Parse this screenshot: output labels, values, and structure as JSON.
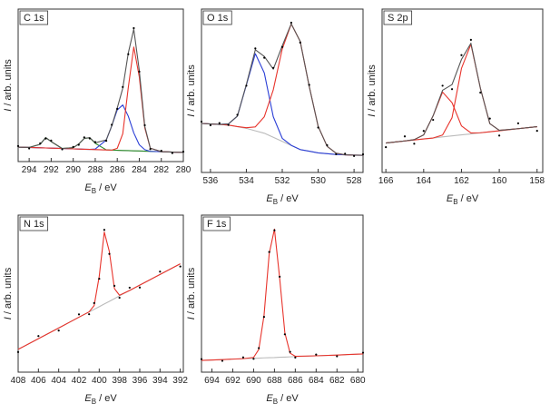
{
  "chart_data": [
    {
      "type": "line",
      "title": "C 1s",
      "xlabel": [
        "E",
        "B",
        " / eV"
      ],
      "ylabel": [
        "I",
        " / arb. units"
      ],
      "xlim": [
        295,
        280
      ],
      "xticks": [
        294,
        292,
        290,
        288,
        286,
        284,
        282,
        280
      ],
      "ylim": [
        0,
        100
      ],
      "x": [
        295,
        294,
        293,
        292.5,
        292,
        291,
        290,
        289.5,
        289,
        288.5,
        288,
        287,
        286.5,
        286,
        285.5,
        285,
        284.5,
        284,
        283.5,
        283,
        282,
        281,
        280
      ],
      "series": [
        {
          "color": "#bbbbbb",
          "style": "line",
          "values": [
            9.5,
            9.27,
            9.03,
            8.92,
            8.8,
            8.57,
            8.33,
            8.22,
            8.1,
            7.98,
            7.87,
            7.63,
            7.52,
            7.4,
            7.28,
            7.17,
            7.05,
            6.93,
            6.82,
            6.7,
            6.47,
            6.23,
            6
          ]
        },
        {
          "color": "#2a8a2a",
          "style": "line",
          "values": [
            9.5,
            9.27,
            11.3,
            15.7,
            13.1,
            8.57,
            9.1,
            11.5,
            15.2,
            15.6,
            12.0,
            7.7,
            7.52,
            7.4,
            7.28,
            7.17,
            7.05,
            6.93,
            6.82,
            6.7,
            6.47,
            6.23,
            6
          ]
        },
        {
          "color": "#2b3fd6",
          "style": "line",
          "values": [
            9.5,
            9.27,
            9.03,
            8.92,
            8.8,
            8.57,
            8.33,
            8.22,
            8.1,
            7.98,
            8.2,
            14.1,
            23.4,
            33.9,
            37.1,
            29.8,
            18.8,
            11.0,
            7.8,
            6.7,
            6.47,
            6.23,
            6
          ]
        },
        {
          "color": "#e8342c",
          "style": "line",
          "values": [
            9.5,
            9.27,
            9.03,
            8.92,
            8.8,
            8.57,
            8.33,
            8.22,
            8.1,
            7.98,
            7.87,
            7.63,
            7.52,
            8.7,
            18.3,
            48.5,
            75.1,
            55.6,
            22.1,
            8.8,
            6.5,
            6.2,
            6
          ]
        },
        {
          "color": "#555555",
          "style": "line",
          "values": [
            9.5,
            9.27,
            11.3,
            15.7,
            13.1,
            8.57,
            9.1,
            11.5,
            15.2,
            15.7,
            12.3,
            14.2,
            23.4,
            35.2,
            48.1,
            71.1,
            86.8,
            59.7,
            23.1,
            8.8,
            6.5,
            6.2,
            6
          ]
        },
        {
          "color": "#000000",
          "style": "points",
          "values": [
            10.2,
            8.6,
            11.9,
            15.1,
            13.8,
            8.0,
            9.6,
            11.0,
            15.9,
            15.2,
            12.8,
            13.6,
            24.1,
            34.6,
            48.9,
            70.4,
            87.5,
            59.0,
            23.8,
            8.2,
            7.1,
            5.6,
            6.5
          ]
        }
      ]
    },
    {
      "type": "line",
      "title": "O 1s",
      "xlabel": [
        "E",
        "B",
        " / eV"
      ],
      "ylabel": [
        "I",
        " / arb. units"
      ],
      "xlim": [
        536.5,
        527.5
      ],
      "xticks": [
        536,
        534,
        532,
        530,
        528
      ],
      "ylim": [
        0,
        100
      ],
      "x": [
        536.5,
        536,
        535.5,
        535,
        534.5,
        534,
        533.5,
        533,
        532.5,
        532,
        531.5,
        531,
        530.5,
        530,
        529.5,
        529,
        528.5,
        528,
        527.5
      ],
      "series": [
        {
          "color": "#bbbbbb",
          "style": "line",
          "values": [
            30,
            29.7,
            29.4,
            29,
            28,
            27,
            25.5,
            24,
            21.5,
            19,
            16.5,
            14,
            13,
            12,
            11.5,
            11,
            10.8,
            10.6,
            10.5
          ]
        },
        {
          "color": "#2b3fd6",
          "style": "line",
          "values": [
            30,
            29.7,
            29.4,
            29.7,
            34.5,
            53.5,
            72.7,
            60.9,
            34.1,
            20.9,
            16.6,
            14,
            13,
            12,
            11.5,
            11,
            10.8,
            10.6,
            10.5
          ]
        },
        {
          "color": "#e8342c",
          "style": "line",
          "values": [
            30,
            29.7,
            29.4,
            29,
            28.1,
            27.4,
            27.9,
            34.1,
            50.6,
            75.6,
            90.9,
            80.2,
            52.8,
            28.2,
            16,
            11.8,
            10.8,
            10.6,
            10.5
          ]
        },
        {
          "color": "#555555",
          "style": "line",
          "values": [
            30,
            29.7,
            29.4,
            29.7,
            34.5,
            53.9,
            75.1,
            71,
            63.2,
            77.5,
            91,
            80.2,
            52.8,
            28.2,
            16,
            11.8,
            10.8,
            10.6,
            10.5
          ]
        },
        {
          "color": "#000000",
          "style": "points",
          "values": [
            31.1,
            28.9,
            30.2,
            29.1,
            35.3,
            53.1,
            75.9,
            70.2,
            64.0,
            76.8,
            91.7,
            79.5,
            53.6,
            27.5,
            16.7,
            11.2,
            11.5,
            10.1,
            11.1
          ]
        }
      ]
    },
    {
      "type": "line",
      "title": "S 2p",
      "xlabel": [
        "E",
        "B",
        " / eV"
      ],
      "ylabel": [
        "I",
        " / arb. units"
      ],
      "xlim": [
        166.2,
        157.7
      ],
      "xticks": [
        166,
        164,
        162,
        160,
        158
      ],
      "ylim": [
        0,
        100
      ],
      "x": [
        166,
        165,
        164.5,
        164,
        163.5,
        163,
        162.5,
        162,
        161.5,
        161,
        160.5,
        160,
        159,
        158
      ],
      "series": [
        {
          "color": "#bbbbbb",
          "style": "line",
          "values": [
            18,
            19.25,
            19.9,
            20.5,
            21.1,
            21.75,
            22.4,
            23,
            23.6,
            24.25,
            24.9,
            25.5,
            26.75,
            28
          ]
        },
        {
          "color": "#e8342c",
          "style": "line",
          "values": [
            18,
            19.25,
            19.9,
            20.5,
            21.1,
            22.9,
            33.5,
            63.7,
            78.5,
            51.6,
            29.9,
            25.8,
            26.8,
            28
          ]
        },
        {
          "color": "#e8342c",
          "style": "line",
          "values": [
            18,
            19.3,
            20.1,
            23,
            34.7,
            49.2,
            42.7,
            28.5,
            24.2,
            24.3,
            24.9,
            25.5,
            26.8,
            28
          ]
        },
        {
          "color": "#555555",
          "style": "line",
          "values": [
            18,
            19.3,
            20.1,
            23,
            34.7,
            50.3,
            53.8,
            69.2,
            79.1,
            51.6,
            29.9,
            25.8,
            26.8,
            28
          ]
        },
        {
          "color": "#000000",
          "style": "points",
          "values": [
            15.5,
            22.1,
            17.6,
            25.4,
            32.2,
            53.1,
            51.0,
            71.8,
            81.2,
            48.9,
            33.0,
            22.6,
            30.1,
            25.5
          ]
        }
      ]
    },
    {
      "type": "line",
      "title": "N 1s",
      "xlabel": [
        "E",
        "B",
        " / eV"
      ],
      "ylabel": [
        "I",
        " / arb. units"
      ],
      "xlim": [
        408,
        391.7
      ],
      "xticks": [
        408,
        406,
        404,
        402,
        400,
        398,
        396,
        394,
        392
      ],
      "ylim": [
        0,
        100
      ],
      "x": [
        408,
        406,
        404,
        402,
        401,
        400.5,
        400,
        399.5,
        399,
        398.5,
        398,
        397,
        396,
        394,
        392
      ],
      "series": [
        {
          "color": "#bbbbbb",
          "style": "line",
          "values": [
            14.5,
            21.3,
            28.1,
            35,
            38.3,
            40,
            41.7,
            43.4,
            45.1,
            46.8,
            48.6,
            52,
            55.4,
            62.2,
            69
          ]
        },
        {
          "color": "#e8342c",
          "style": "line",
          "values": [
            14.5,
            21.3,
            28.1,
            35,
            38.4,
            42.4,
            61,
            89.2,
            76.8,
            53.2,
            49,
            52,
            55.4,
            62.2,
            69
          ]
        },
        {
          "color": "#000000",
          "style": "points",
          "values": [
            12.8,
            23.0,
            26.5,
            36.8,
            36.9,
            44.0,
            59.5,
            90.6,
            75.3,
            55.0,
            47.4,
            53.8,
            53.9,
            64.0,
            67.3
          ]
        }
      ]
    },
    {
      "type": "line",
      "title": "F 1s",
      "xlabel": [
        "E",
        "B",
        " / eV"
      ],
      "ylabel": [
        "I",
        " / arb. units"
      ],
      "xlim": [
        695,
        679.5
      ],
      "xticks": [
        694,
        692,
        690,
        688,
        686,
        684,
        682,
        680
      ],
      "ylim": [
        0,
        100
      ],
      "x": [
        695,
        693,
        691,
        690,
        689.5,
        689,
        688.5,
        688,
        687.5,
        687,
        686.5,
        686,
        684,
        682,
        679.5
      ],
      "series": [
        {
          "color": "#bbbbbb",
          "style": "line",
          "values": [
            7.5,
            8.0,
            8.6,
            8.8,
            8.95,
            9.1,
            9.2,
            9.3,
            9.5,
            9.6,
            9.75,
            9.9,
            10.4,
            10.9,
            11.6
          ]
        },
        {
          "color": "#e8342c",
          "style": "line",
          "values": [
            7.5,
            8,
            8.6,
            9.4,
            14.5,
            36.1,
            75.6,
            91.1,
            59.9,
            25,
            12.1,
            10.1,
            10.4,
            10.9,
            11.6
          ]
        },
        {
          "color": "#000000",
          "style": "points",
          "values": [
            8.3,
            7.2,
            9.4,
            8.5,
            15.3,
            35.2,
            76.5,
            90.3,
            60.8,
            24.1,
            12.9,
            9.3,
            11.2,
            10.1,
            12.4
          ]
        }
      ]
    }
  ]
}
